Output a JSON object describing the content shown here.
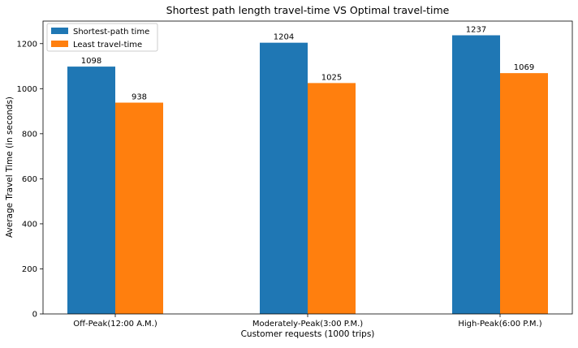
{
  "chart_data": {
    "type": "bar",
    "title": "Shortest path length travel-time VS Optimal travel-time",
    "xlabel": "Customer requests (1000 trips)",
    "ylabel": "Average Travel Time (in seconds)",
    "categories": [
      "Off-Peak(12:00 A.M.)",
      "Moderately-Peak(3:00 P.M.)",
      "High-Peak(6:00 P.M.)"
    ],
    "series": [
      {
        "name": "Shortest-path time",
        "values": [
          1098,
          1204,
          1237
        ],
        "color": "#1f77b4"
      },
      {
        "name": "Least travel-time",
        "values": [
          938,
          1025,
          1069
        ],
        "color": "#ff7f0e"
      }
    ],
    "data_labels": [
      [
        "1098",
        "1204",
        "1237"
      ],
      [
        "938",
        "1025",
        "1069"
      ]
    ],
    "ylim": [
      0,
      1300
    ],
    "yticks": [
      0,
      200,
      400,
      600,
      800,
      1000,
      1200
    ],
    "ytick_labels": [
      "0",
      "200",
      "400",
      "600",
      "800",
      "1000",
      "1200"
    ],
    "grid": false,
    "legend_position": "top-left"
  }
}
